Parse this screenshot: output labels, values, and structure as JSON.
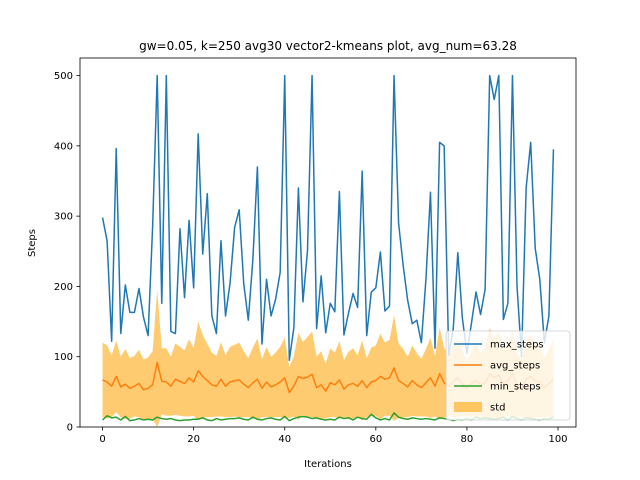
{
  "chart_data": {
    "type": "line",
    "title": "gw=0.05, k=250 avg30 vector2-kmeans plot, avg_num=63.28",
    "xlabel": "Iterations",
    "ylabel": "Steps",
    "xlim": [
      -4.95,
      103.95
    ],
    "ylim": [
      0,
      525
    ],
    "xticks": [
      0,
      20,
      40,
      60,
      80,
      100
    ],
    "yticks": [
      0,
      100,
      200,
      300,
      400,
      500
    ],
    "grid": false,
    "legend_position": "lower-right",
    "x": [
      0,
      1,
      2,
      3,
      4,
      5,
      6,
      7,
      8,
      9,
      10,
      11,
      12,
      13,
      14,
      15,
      16,
      17,
      18,
      19,
      20,
      21,
      22,
      23,
      24,
      25,
      26,
      27,
      28,
      29,
      30,
      31,
      32,
      33,
      34,
      35,
      36,
      37,
      38,
      39,
      40,
      41,
      42,
      43,
      44,
      45,
      46,
      47,
      48,
      49,
      50,
      51,
      52,
      53,
      54,
      55,
      56,
      57,
      58,
      59,
      60,
      61,
      62,
      63,
      64,
      65,
      66,
      67,
      68,
      69,
      70,
      71,
      72,
      73,
      74,
      75,
      76,
      77,
      78,
      79,
      80,
      81,
      82,
      83,
      84,
      85,
      86,
      87,
      88,
      89,
      90,
      91,
      92,
      93,
      94,
      95,
      96,
      97,
      98,
      99
    ],
    "series": [
      {
        "name": "max_steps",
        "color": "#1f77b4",
        "values": [
          298,
          265,
          122,
          396,
          133,
          202,
          163,
          163,
          197,
          156,
          130,
          286,
          500,
          176,
          500,
          136,
          133,
          282,
          184,
          294,
          198,
          417,
          246,
          332,
          158,
          133,
          265,
          158,
          205,
          284,
          309,
          204,
          152,
          238,
          370,
          118,
          210,
          158,
          182,
          220,
          500,
          95,
          141,
          340,
          178,
          251,
          500,
          140,
          215,
          134,
          176,
          164,
          335,
          131,
          162,
          190,
          170,
          364,
          130,
          192,
          198,
          249,
          165,
          172,
          500,
          290,
          230,
          180,
          147,
          152,
          120,
          210,
          334,
          112,
          405,
          400,
          102,
          140,
          248,
          155,
          105,
          148,
          192,
          160,
          196,
          500,
          466,
          500,
          153,
          176,
          500,
          200,
          100,
          340,
          405,
          254,
          210,
          120,
          158,
          395
        ]
      },
      {
        "name": "avg_steps",
        "color": "#ff7f0e",
        "values": [
          67,
          64,
          58,
          72,
          57,
          61,
          55,
          58,
          62,
          53,
          55,
          60,
          92,
          65,
          64,
          58,
          68,
          65,
          62,
          70,
          64,
          80,
          72,
          66,
          60,
          58,
          68,
          58,
          64,
          66,
          67,
          61,
          56,
          63,
          68,
          55,
          64,
          57,
          60,
          64,
          70,
          49,
          58,
          72,
          69,
          71,
          75,
          56,
          60,
          51,
          63,
          60,
          67,
          54,
          60,
          62,
          58,
          66,
          56,
          64,
          66,
          72,
          68,
          70,
          84,
          66,
          62,
          57,
          66,
          60,
          56,
          63,
          70,
          58,
          76,
          63,
          58,
          65,
          70,
          62,
          54,
          62,
          66,
          60,
          63,
          76,
          70,
          74,
          62,
          66,
          76,
          60,
          55,
          68,
          72,
          66,
          64,
          56,
          62,
          68
        ]
      },
      {
        "name": "min_steps",
        "color": "#2ca02c",
        "values": [
          10,
          16,
          13,
          14,
          10,
          15,
          9,
          10,
          12,
          10,
          11,
          10,
          14,
          12,
          11,
          12,
          10,
          9,
          10,
          10,
          11,
          11,
          13,
          10,
          9,
          12,
          10,
          11,
          12,
          12,
          13,
          11,
          10,
          14,
          11,
          10,
          12,
          13,
          11,
          10,
          15,
          9,
          12,
          14,
          15,
          14,
          12,
          13,
          11,
          10,
          11,
          10,
          14,
          12,
          13,
          10,
          14,
          12,
          11,
          18,
          13,
          10,
          12,
          10,
          20,
          14,
          12,
          11,
          13,
          12,
          11,
          12,
          11,
          10,
          13,
          12,
          11,
          9,
          11,
          10,
          12,
          10,
          14,
          12,
          13,
          12,
          11,
          12,
          14,
          10,
          15,
          12,
          10,
          13,
          12,
          11,
          10,
          12,
          11,
          14
        ]
      },
      {
        "name": "std",
        "type": "band",
        "color": "#ffc560",
        "upper": [
          120,
          116,
          102,
          123,
          100,
          111,
          98,
          101,
          110,
          96,
          99,
          108,
          195,
          112,
          112,
          100,
          119,
          114,
          109,
          125,
          112,
          150,
          131,
          118,
          106,
          101,
          121,
          102,
          114,
          117,
          120,
          108,
          98,
          113,
          126,
          96,
          114,
          100,
          106,
          114,
          127,
          85,
          101,
          134,
          121,
          128,
          136,
          100,
          108,
          90,
          112,
          106,
          122,
          95,
          107,
          112,
          102,
          123,
          98,
          113,
          116,
          133,
          120,
          124,
          159,
          119,
          111,
          100,
          116,
          105,
          97,
          111,
          127,
          101,
          141,
          113,
          100,
          116,
          126,
          109,
          93,
          109,
          118,
          105,
          113,
          141,
          126,
          136,
          109,
          117,
          137,
          106,
          95,
          123,
          132,
          118,
          114,
          98,
          110,
          124
        ],
        "lower": [
          14,
          12,
          14,
          21,
          14,
          11,
          12,
          15,
          14,
          10,
          11,
          12,
          0,
          18,
          16,
          16,
          17,
          16,
          15,
          15,
          16,
          10,
          13,
          14,
          14,
          15,
          15,
          14,
          14,
          15,
          14,
          14,
          14,
          13,
          10,
          14,
          14,
          14,
          14,
          14,
          13,
          13,
          15,
          10,
          17,
          14,
          14,
          12,
          12,
          12,
          14,
          14,
          12,
          13,
          13,
          12,
          14,
          9,
          14,
          15,
          16,
          11,
          16,
          16,
          9,
          13,
          13,
          14,
          16,
          15,
          15,
          15,
          13,
          15,
          11,
          13,
          16,
          14,
          14,
          15,
          15,
          15,
          14,
          15,
          13,
          11,
          14,
          12,
          15,
          15,
          15,
          14,
          15,
          13,
          12,
          14,
          14,
          14,
          14,
          12
        ]
      }
    ]
  }
}
